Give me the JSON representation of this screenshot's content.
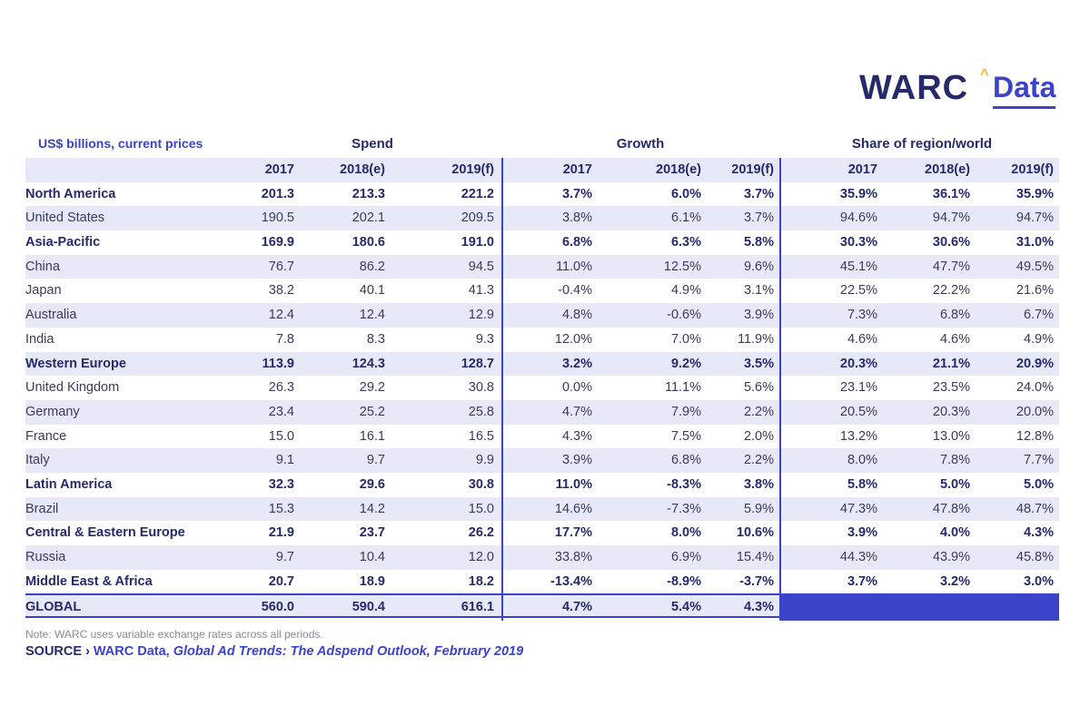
{
  "logo": {
    "brand": "WARC",
    "caret": "^",
    "product": "Data"
  },
  "chart_data": {
    "type": "table",
    "unit_label": "US$ billions, current prices",
    "groups": [
      "Spend",
      "Growth",
      "Share of region/world"
    ],
    "years": [
      "2017",
      "2018(e)",
      "2019(f)"
    ],
    "rows": [
      {
        "name": "North America",
        "level": "region",
        "spend": [
          "201.3",
          "213.3",
          "221.2"
        ],
        "growth": [
          "3.7%",
          "6.0%",
          "3.7%"
        ],
        "share": [
          "35.9%",
          "36.1%",
          "35.9%"
        ]
      },
      {
        "name": "United States",
        "level": "country",
        "spend": [
          "190.5",
          "202.1",
          "209.5"
        ],
        "growth": [
          "3.8%",
          "6.1%",
          "3.7%"
        ],
        "share": [
          "94.6%",
          "94.7%",
          "94.7%"
        ]
      },
      {
        "name": "Asia-Pacific",
        "level": "region",
        "spend": [
          "169.9",
          "180.6",
          "191.0"
        ],
        "growth": [
          "6.8%",
          "6.3%",
          "5.8%"
        ],
        "share": [
          "30.3%",
          "30.6%",
          "31.0%"
        ]
      },
      {
        "name": "China",
        "level": "country",
        "spend": [
          "76.7",
          "86.2",
          "94.5"
        ],
        "growth": [
          "11.0%",
          "12.5%",
          "9.6%"
        ],
        "share": [
          "45.1%",
          "47.7%",
          "49.5%"
        ]
      },
      {
        "name": "Japan",
        "level": "country",
        "spend": [
          "38.2",
          "40.1",
          "41.3"
        ],
        "growth": [
          "-0.4%",
          "4.9%",
          "3.1%"
        ],
        "share": [
          "22.5%",
          "22.2%",
          "21.6%"
        ]
      },
      {
        "name": "Australia",
        "level": "country",
        "spend": [
          "12.4",
          "12.4",
          "12.9"
        ],
        "growth": [
          "4.8%",
          "-0.6%",
          "3.9%"
        ],
        "share": [
          "7.3%",
          "6.8%",
          "6.7%"
        ]
      },
      {
        "name": "India",
        "level": "country",
        "spend": [
          "7.8",
          "8.3",
          "9.3"
        ],
        "growth": [
          "12.0%",
          "7.0%",
          "11.9%"
        ],
        "share": [
          "4.6%",
          "4.6%",
          "4.9%"
        ]
      },
      {
        "name": "Western Europe",
        "level": "region",
        "spend": [
          "113.9",
          "124.3",
          "128.7"
        ],
        "growth": [
          "3.2%",
          "9.2%",
          "3.5%"
        ],
        "share": [
          "20.3%",
          "21.1%",
          "20.9%"
        ]
      },
      {
        "name": "United Kingdom",
        "level": "country",
        "spend": [
          "26.3",
          "29.2",
          "30.8"
        ],
        "growth": [
          "0.0%",
          "11.1%",
          "5.6%"
        ],
        "share": [
          "23.1%",
          "23.5%",
          "24.0%"
        ]
      },
      {
        "name": "Germany",
        "level": "country",
        "spend": [
          "23.4",
          "25.2",
          "25.8"
        ],
        "growth": [
          "4.7%",
          "7.9%",
          "2.2%"
        ],
        "share": [
          "20.5%",
          "20.3%",
          "20.0%"
        ]
      },
      {
        "name": "France",
        "level": "country",
        "spend": [
          "15.0",
          "16.1",
          "16.5"
        ],
        "growth": [
          "4.3%",
          "7.5%",
          "2.0%"
        ],
        "share": [
          "13.2%",
          "13.0%",
          "12.8%"
        ]
      },
      {
        "name": "Italy",
        "level": "country",
        "spend": [
          "9.1",
          "9.7",
          "9.9"
        ],
        "growth": [
          "3.9%",
          "6.8%",
          "2.2%"
        ],
        "share": [
          "8.0%",
          "7.8%",
          "7.7%"
        ]
      },
      {
        "name": "Latin America",
        "level": "region",
        "spend": [
          "32.3",
          "29.6",
          "30.8"
        ],
        "growth": [
          "11.0%",
          "-8.3%",
          "3.8%"
        ],
        "share": [
          "5.8%",
          "5.0%",
          "5.0%"
        ]
      },
      {
        "name": "Brazil",
        "level": "country",
        "spend": [
          "15.3",
          "14.2",
          "15.0"
        ],
        "growth": [
          "14.6%",
          "-7.3%",
          "5.9%"
        ],
        "share": [
          "47.3%",
          "47.8%",
          "48.7%"
        ]
      },
      {
        "name": "Central & Eastern Europe",
        "level": "region",
        "spend": [
          "21.9",
          "23.7",
          "26.2"
        ],
        "growth": [
          "17.7%",
          "8.0%",
          "10.6%"
        ],
        "share": [
          "3.9%",
          "4.0%",
          "4.3%"
        ]
      },
      {
        "name": "Russia",
        "level": "country",
        "spend": [
          "9.7",
          "10.4",
          "12.0"
        ],
        "growth": [
          "33.8%",
          "6.9%",
          "15.4%"
        ],
        "share": [
          "44.3%",
          "43.9%",
          "45.8%"
        ]
      },
      {
        "name": "Middle East & Africa",
        "level": "region",
        "spend": [
          "20.7",
          "18.9",
          "18.2"
        ],
        "growth": [
          "-13.4%",
          "-8.9%",
          "-3.7%"
        ],
        "share": [
          "3.7%",
          "3.2%",
          "3.0%"
        ]
      }
    ],
    "global": {
      "name": "GLOBAL",
      "spend": [
        "560.0",
        "590.4",
        "616.1"
      ],
      "growth": [
        "4.7%",
        "5.4%",
        "4.3%"
      ]
    }
  },
  "footer": {
    "note": "Note: WARC uses variable exchange rates across all periods.",
    "source_prefix": "SOURCE › ",
    "source_link": "WARC Data, ",
    "source_title": "Global Ad Trends: The Adspend Outlook, February 2019"
  },
  "colors": {
    "accent": "#3a43c9",
    "navy": "#262a6b",
    "band": "#e7e9f8",
    "caret": "#f2b23a"
  }
}
